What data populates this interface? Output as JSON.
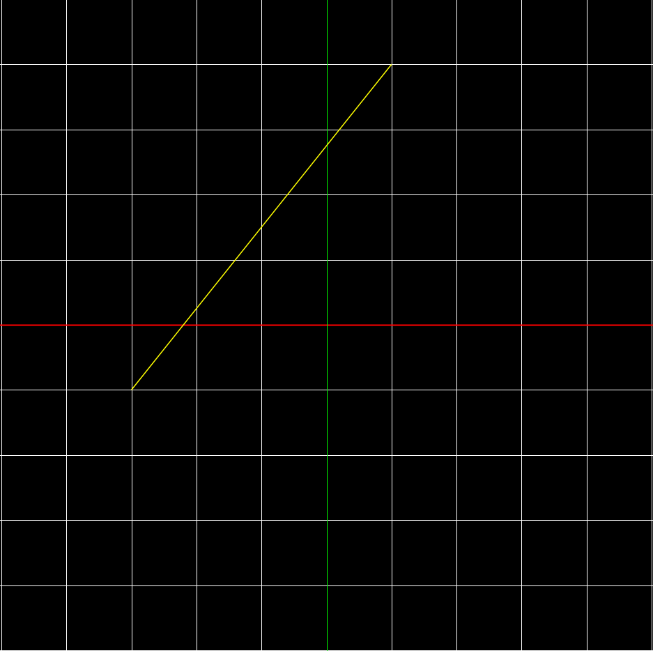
{
  "chart_data": {
    "type": "line",
    "title": "",
    "xlabel": "",
    "ylabel": "",
    "xlim": [
      -5,
      5
    ],
    "ylim": [
      -5,
      5
    ],
    "grid": true,
    "grid_step": 1,
    "background_color": "#000000",
    "grid_color": "#ffffff",
    "x_axis_color": "#ff0000",
    "y_axis_color": "#00ff00",
    "series": [
      {
        "color": "#ffff00",
        "x": [
          -3,
          1
        ],
        "y": [
          -1,
          4
        ]
      }
    ]
  }
}
